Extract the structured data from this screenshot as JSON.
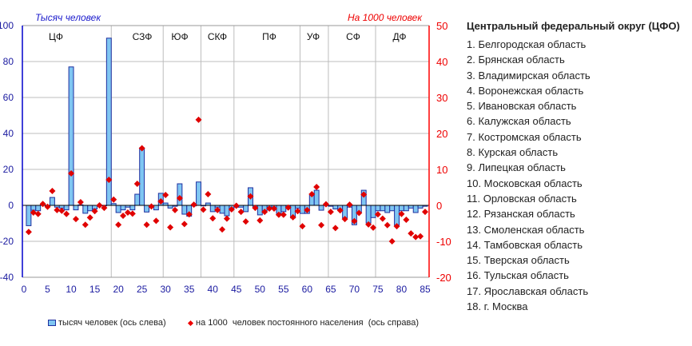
{
  "chart_data": {
    "type": "bar+scatter",
    "left_axis_title": "Тысяч человек",
    "right_axis_title": "На 1000 человек",
    "ylim_left": [
      -40,
      100
    ],
    "yticks_left": [
      -40,
      -20,
      0,
      20,
      40,
      60,
      80,
      100
    ],
    "ylim_right": [
      -20,
      50
    ],
    "yticks_right": [
      -20,
      -10,
      0,
      10,
      20,
      30,
      40,
      50
    ],
    "xlim": [
      0,
      85
    ],
    "xticks": [
      0,
      5,
      10,
      15,
      20,
      25,
      30,
      35,
      40,
      45,
      50,
      55,
      60,
      65,
      70,
      75,
      80,
      85
    ],
    "grid": true,
    "legend_placement": "bottom",
    "colors": {
      "bars": "#7fc6f2",
      "bar_border": "#1f2f9f",
      "points": "#e00000",
      "left_axis": "#0000cc",
      "right_axis": "#ff0000"
    },
    "regions": [
      {
        "label": "ЦФ",
        "end": 18.5
      },
      {
        "label": "СЗФ",
        "end": 29.5
      },
      {
        "label": "ЮФ",
        "end": 37.5
      },
      {
        "label": "СКФ",
        "end": 44.5
      },
      {
        "label": "ПФ",
        "end": 58.5
      },
      {
        "label": "УФ",
        "end": 64.5
      },
      {
        "label": "СФ",
        "end": 74.5
      },
      {
        "label": "ДФ",
        "end": 85.5
      }
    ],
    "series": [
      {
        "name": "тысяч человек (ось слева)",
        "axis": "left",
        "kind": "bar",
        "values": [
          -11.3,
          -2.7,
          -3,
          0.3,
          -0.3,
          4.4,
          -1,
          -1.5,
          -2.5,
          77,
          -2.5,
          0.3,
          -4.4,
          -3,
          -2,
          0.2,
          -0.3,
          93,
          1,
          -4,
          -2.5,
          -1,
          -2.5,
          6.2,
          32,
          -3.7,
          -0.3,
          -2.5,
          6.7,
          1.3,
          -1.5,
          -0.5,
          12,
          -4.9,
          -6,
          -0.3,
          13,
          -0.3,
          1.3,
          -3.5,
          -1,
          -4.4,
          -5.8,
          -2,
          -1,
          -1,
          -3.5,
          9.8,
          -1,
          -5.3,
          -3,
          -1,
          -2,
          -4.5,
          -3.5,
          -1,
          -7,
          -1.5,
          -4.5,
          -4.5,
          5.5,
          8.4,
          -2.7,
          0.2,
          -0.5,
          -2,
          -2.5,
          -7,
          -1,
          -10.8,
          -4,
          8.4,
          -9.8,
          -6.8,
          -3,
          -3,
          -4,
          -3,
          -11,
          -3,
          -3,
          -1.5,
          -4,
          -1.5,
          -0.5
        ]
      },
      {
        "name": "на 1000  человек постоянного населения  (ось справа)",
        "axis": "right",
        "kind": "scatter",
        "values": [
          -7.4,
          -2,
          -2.4,
          0.4,
          -0.4,
          4,
          -1.3,
          -1.5,
          -2.4,
          8.9,
          -3.8,
          0.9,
          -5.4,
          -3.4,
          -1.6,
          0,
          -0.7,
          7.1,
          1.6,
          -5.4,
          -2.9,
          -2,
          -2.3,
          6,
          15.9,
          -5.4,
          -0.3,
          -4.3,
          1.1,
          2.9,
          -6.1,
          -1.3,
          2,
          -5.2,
          -2.5,
          0.2,
          23.8,
          -1.2,
          3.1,
          -3.6,
          -1.3,
          -6.7,
          -3.7,
          -1.1,
          -0.1,
          -1.8,
          -4.5,
          2.5,
          -0.7,
          -4.2,
          -1.8,
          -0.9,
          -0.9,
          -2.6,
          -2.6,
          -0.6,
          -3.3,
          -1.6,
          -5.8,
          -1.3,
          3.1,
          5.1,
          -5.5,
          0.3,
          -1.8,
          -6.3,
          -1.4,
          -3.8,
          0.2,
          -4.4,
          -2.1,
          3,
          -5.3,
          -6.2,
          -2.5,
          -3.7,
          -5.5,
          -10,
          -5.8,
          -2.4,
          -4,
          -7.8,
          -8.8,
          -8.6,
          -1.8
        ]
      }
    ]
  },
  "legend": {
    "bars_label": "тысяч человек (ось слева)",
    "points_label": "на 1000  человек постоянного населения  (ось справа)"
  },
  "side_list": {
    "title": "Центральный федеральный округ (ЦФО)",
    "items": [
      "1. Белгородская область",
      "2. Брянская область",
      "3. Владимирская область",
      "4. Воронежская область",
      "5. Ивановская область",
      "6. Калужская область",
      "7. Костромская область",
      "8. Курская область",
      "9. Липецкая область",
      "10. Московская область",
      "11. Орловская область",
      "12. Рязанская область",
      "13. Смоленская область",
      "14. Тамбовская область",
      "15. Тверская область",
      "16. Тульская область",
      "17. Ярославская область",
      "18. г. Москва"
    ]
  }
}
